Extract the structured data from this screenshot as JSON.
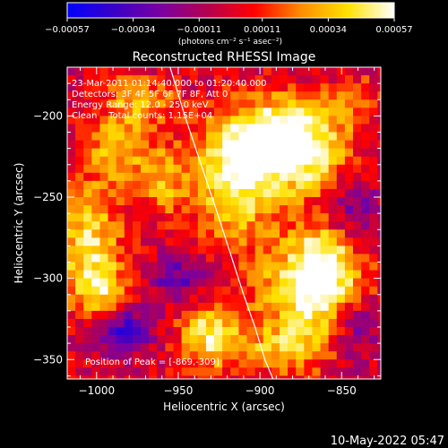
{
  "chart_data": {
    "type": "heatmap",
    "title": "Reconstructed RHESSI Image",
    "xlabel": "Heliocentric X (arcsec)",
    "ylabel": "Heliocentric Y (arcsec)",
    "xlim": [
      -1018,
      -826
    ],
    "ylim": [
      -362,
      -170
    ],
    "x_ticks": [
      -1000,
      -950,
      -900,
      -850
    ],
    "y_ticks": [
      -350,
      -300,
      -250,
      -200
    ],
    "x_tick_labels": [
      "−1000",
      "−950",
      "−900",
      "−850"
    ],
    "y_tick_labels": [
      "−350",
      "−300",
      "−250",
      "−200"
    ],
    "colorbar": {
      "label": "(photons cm⁻² s⁻¹ asec⁻²)",
      "range": [
        -0.00057,
        0.00057
      ],
      "ticks": [
        -0.00057,
        -0.00034,
        -0.00011,
        0.00011,
        0.00034,
        0.00057
      ],
      "tick_labels": [
        "−0.00057",
        "−0.00034",
        "−0.00011",
        "0.00011",
        "0.00034",
        "0.00057"
      ],
      "colors": [
        "#0000ff",
        "#3a00c8",
        "#7a00a0",
        "#b40050",
        "#ff0000",
        "#ff8c00",
        "#ffe200",
        "#ffffff"
      ]
    },
    "annotations": [
      "23-Mar-2011 01:14:40.000 to 01:20:40.000",
      "Detectors: 3F 4F 5F 6F 7F 8F, Att 0",
      "Energy Range: 12.0 - 25.0 keV",
      "Clean    Total counts: 1.15E+04",
      "Position of Peak = [-869,-309]"
    ],
    "peak": [
      -869,
      -309
    ],
    "limb_curve": {
      "x": [
        -955,
        -946,
        -936,
        -926,
        -918,
        -910,
        -903,
        -897,
        -892
      ],
      "y": [
        -170,
        -200,
        -230,
        -260,
        -285,
        -310,
        -330,
        -350,
        -362
      ]
    },
    "blobs": [
      {
        "x": -915,
        "y": -240,
        "sx": 20,
        "sy": 26,
        "amp": 0.0005
      },
      {
        "x": -900,
        "y": -220,
        "sx": 16,
        "sy": 12,
        "amp": 0.00042
      },
      {
        "x": -880,
        "y": -205,
        "sx": 22,
        "sy": 14,
        "amp": 0.00045
      },
      {
        "x": -870,
        "y": -230,
        "sx": 18,
        "sy": 16,
        "amp": 0.00038
      },
      {
        "x": -869,
        "y": -309,
        "sx": 22,
        "sy": 20,
        "amp": 0.00057
      },
      {
        "x": -860,
        "y": -285,
        "sx": 14,
        "sy": 16,
        "amp": 0.0004
      },
      {
        "x": -885,
        "y": -345,
        "sx": 18,
        "sy": 10,
        "amp": 0.00033
      },
      {
        "x": -930,
        "y": -335,
        "sx": 14,
        "sy": 14,
        "amp": 0.0005
      },
      {
        "x": -1005,
        "y": -280,
        "sx": 14,
        "sy": 28,
        "amp": 0.00045
      },
      {
        "x": -985,
        "y": -220,
        "sx": 14,
        "sy": 14,
        "amp": 0.00035
      },
      {
        "x": -975,
        "y": -190,
        "sx": 16,
        "sy": 10,
        "amp": 0.0003
      },
      {
        "x": -995,
        "y": -310,
        "sx": 12,
        "sy": 12,
        "amp": 0.0003
      },
      {
        "x": -960,
        "y": -240,
        "sx": 10,
        "sy": 14,
        "amp": 0.0003
      },
      {
        "x": -840,
        "y": -190,
        "sx": 10,
        "sy": 10,
        "amp": 0.0002
      },
      {
        "x": -985,
        "y": -330,
        "sx": 14,
        "sy": 10,
        "amp": -0.0004
      },
      {
        "x": -950,
        "y": -300,
        "sx": 12,
        "sy": 10,
        "amp": -0.0003
      },
      {
        "x": -840,
        "y": -330,
        "sx": 10,
        "sy": 14,
        "amp": -0.0003
      },
      {
        "x": -845,
        "y": -260,
        "sx": 12,
        "sy": 16,
        "amp": -0.00028
      }
    ]
  },
  "footer": {
    "date": "10-May-2022 05:47"
  }
}
